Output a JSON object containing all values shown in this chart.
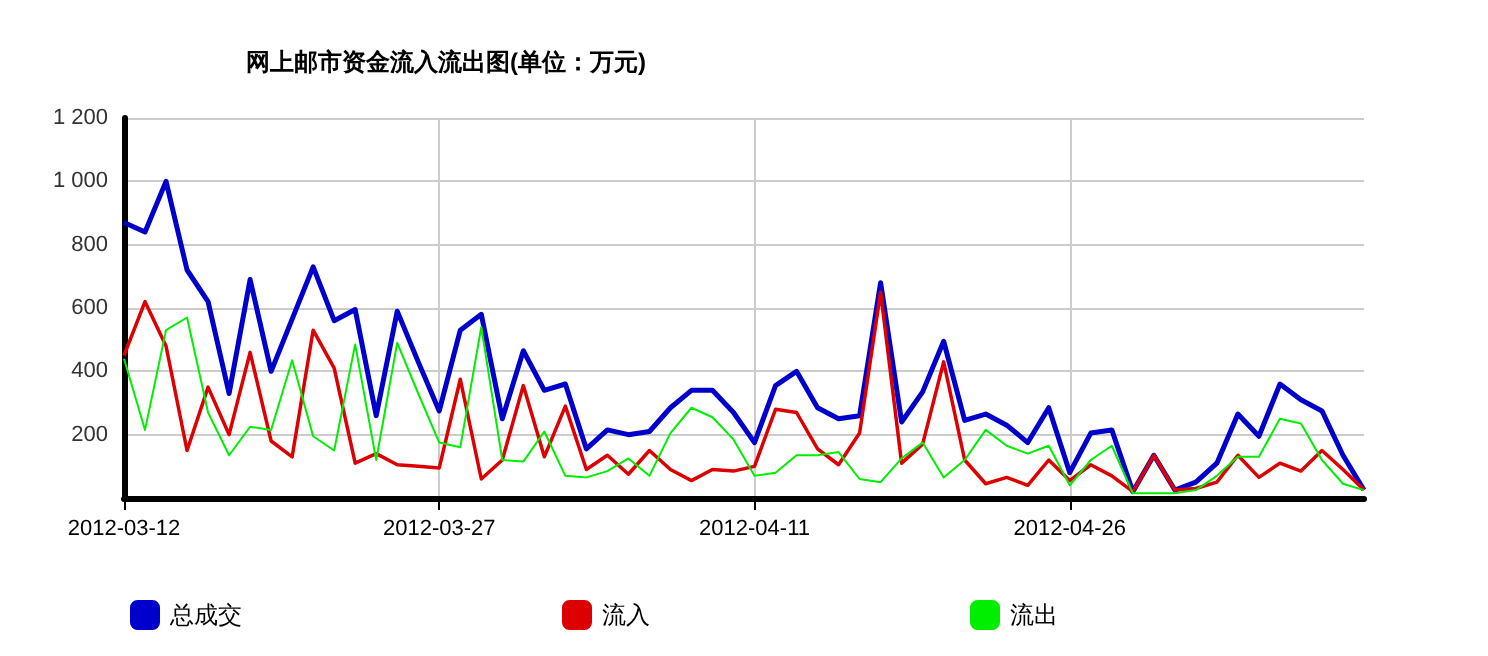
{
  "chart_data": {
    "type": "line",
    "title": "网上邮市资金流入流出图(单位：万元)",
    "x": [
      "2012-03-12",
      "2012-03-13",
      "2012-03-14",
      "2012-03-15",
      "2012-03-16",
      "2012-03-17",
      "2012-03-18",
      "2012-03-19",
      "2012-03-20",
      "2012-03-21",
      "2012-03-22",
      "2012-03-23",
      "2012-03-24",
      "2012-03-25",
      "2012-03-26",
      "2012-03-27",
      "2012-03-28",
      "2012-03-29",
      "2012-03-30",
      "2012-03-31",
      "2012-04-01",
      "2012-04-02",
      "2012-04-03",
      "2012-04-04",
      "2012-04-05",
      "2012-04-06",
      "2012-04-07",
      "2012-04-08",
      "2012-04-09",
      "2012-04-10",
      "2012-04-11",
      "2012-04-12",
      "2012-04-13",
      "2012-04-14",
      "2012-04-15",
      "2012-04-16",
      "2012-04-17",
      "2012-04-18",
      "2012-04-19",
      "2012-04-20",
      "2012-04-21",
      "2012-04-22",
      "2012-04-23",
      "2012-04-24",
      "2012-04-25",
      "2012-04-26",
      "2012-04-27",
      "2012-04-28",
      "2012-04-29",
      "2012-04-30",
      "2012-05-01",
      "2012-05-02",
      "2012-05-03",
      "2012-05-04",
      "2012-05-05",
      "2012-05-06",
      "2012-05-07",
      "2012-05-08",
      "2012-05-09",
      "2012-05-10"
    ],
    "series": [
      {
        "name": "总成交",
        "color": "#0000cc",
        "values": [
          870,
          840,
          1000,
          720,
          620,
          330,
          690,
          400,
          565,
          730,
          560,
          595,
          260,
          590,
          430,
          275,
          530,
          580,
          250,
          465,
          340,
          360,
          155,
          215,
          200,
          210,
          285,
          340,
          340,
          270,
          175,
          355,
          400,
          285,
          250,
          260,
          680,
          240,
          335,
          495,
          245,
          265,
          230,
          175,
          285,
          80,
          205,
          215,
          20,
          135,
          25,
          50,
          110,
          265,
          195,
          360,
          310,
          275,
          135,
          25
        ]
      },
      {
        "name": "流入",
        "color": "#dd0000",
        "values": [
          450,
          620,
          480,
          150,
          350,
          200,
          460,
          180,
          130,
          530,
          410,
          110,
          140,
          105,
          100,
          95,
          375,
          60,
          120,
          355,
          130,
          290,
          90,
          135,
          75,
          150,
          90,
          55,
          90,
          85,
          100,
          280,
          270,
          155,
          105,
          205,
          650,
          110,
          170,
          430,
          120,
          45,
          65,
          40,
          120,
          55,
          105,
          70,
          20,
          135,
          25,
          30,
          50,
          135,
          65,
          110,
          85,
          150,
          90,
          25
        ]
      },
      {
        "name": "流出",
        "color": "#00ee00",
        "values": [
          440,
          215,
          530,
          570,
          270,
          135,
          225,
          215,
          435,
          195,
          150,
          485,
          120,
          490,
          330,
          175,
          160,
          540,
          120,
          115,
          210,
          70,
          65,
          85,
          125,
          70,
          205,
          285,
          255,
          185,
          70,
          80,
          135,
          135,
          145,
          60,
          50,
          125,
          175,
          65,
          120,
          215,
          165,
          140,
          165,
          40,
          120,
          165,
          15,
          15,
          15,
          25,
          70,
          130,
          130,
          250,
          235,
          120,
          45,
          25
        ]
      }
    ],
    "xlim": [
      "2012-03-12",
      "2012-05-10"
    ],
    "xticks": [
      "2012-03-12",
      "2012-03-27",
      "2012-04-11",
      "2012-04-26"
    ],
    "ylim": [
      0,
      1200
    ],
    "yticks": [
      {
        "value": 200,
        "label": "200"
      },
      {
        "value": 400,
        "label": "400"
      },
      {
        "value": 600,
        "label": "600"
      },
      {
        "value": 800,
        "label": "800"
      },
      {
        "value": 1000,
        "label": "1 000"
      },
      {
        "value": 1200,
        "label": "1 200"
      }
    ],
    "grid": true,
    "legend": "bottom",
    "marker": "none",
    "line_style": "solid"
  }
}
